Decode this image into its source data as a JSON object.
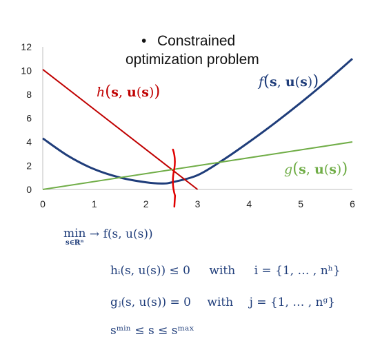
{
  "chart_data": {
    "type": "line",
    "title": [
      "Constrained",
      "optimization problem"
    ],
    "title_bullet": "•",
    "xlim": [
      0,
      6
    ],
    "ylim": [
      0,
      12
    ],
    "x_ticks": [
      "0",
      "1",
      "2",
      "3",
      "4",
      "5",
      "6"
    ],
    "y_ticks": [
      "0",
      "2",
      "4",
      "6",
      "8",
      "10",
      "12"
    ],
    "grid": false,
    "series": [
      {
        "name": "f(s,u(s))",
        "color": "#1f3d7a",
        "x": [
          0,
          0.5,
          1,
          1.5,
          2,
          2.3,
          2.5,
          3,
          3.5,
          4,
          4.5,
          5,
          5.5,
          6
        ],
        "y": [
          4.3,
          2.8,
          1.7,
          1.0,
          0.6,
          0.5,
          0.6,
          1.2,
          2.5,
          4.0,
          5.6,
          7.3,
          9.1,
          11.0
        ]
      },
      {
        "name": "h(s,u(s))",
        "color": "#c00000",
        "x": [
          0,
          3
        ],
        "y": [
          10.1,
          0
        ]
      },
      {
        "name": "g(s,u(s))",
        "color": "#70ad47",
        "x": [
          0,
          6
        ],
        "y": [
          0,
          4
        ]
      }
    ],
    "constraint_marker": {
      "x": 2.55,
      "color": "#e00000"
    }
  },
  "labels": {
    "h": {
      "fn": "h",
      "open": "(",
      "s": "s",
      "comma": ", ",
      "u": "u",
      "inner_open": "(",
      "s2": "s",
      "inner_close": ")",
      "close": ")"
    },
    "f": {
      "fn": "f",
      "open": "(",
      "s": "s",
      "comma": ", ",
      "u": "u",
      "inner_open": "(",
      "s2": "s",
      "inner_close": ")",
      "close": ")"
    },
    "g": {
      "fn": "g",
      "open": "(",
      "s": "s",
      "comma": ", ",
      "u": "u",
      "inner_open": "(",
      "s2": "s",
      "inner_close": ")",
      "close": ")"
    }
  },
  "equations": {
    "line1": {
      "min": "min",
      "domain": "s∈ℝⁿ",
      "arrow": "→",
      "expr": "f(s, u(s))"
    },
    "line2": {
      "expr": "hᵢ(s, u(s)) ≤ 0",
      "with": "with",
      "set": "i = {1, … , nʰ}"
    },
    "line3": {
      "expr": "gⱼ(s, u(s)) = 0",
      "with": "with",
      "set": "j = {1, … , nᵍ}"
    },
    "line4": {
      "expr": "sᵐⁱⁿ ≤ s ≤ sᵐᵃˣ"
    }
  }
}
